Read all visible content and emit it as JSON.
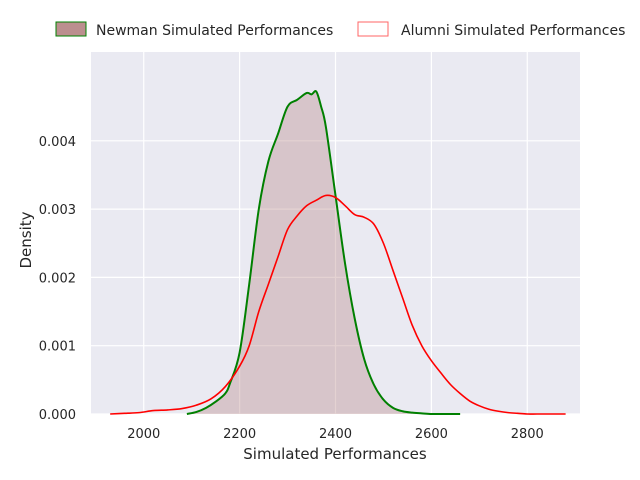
{
  "chart_data": {
    "type": "area",
    "xlabel": "Simulated Performances",
    "ylabel": "Density",
    "xlim": [
      1890,
      2910
    ],
    "ylim": [
      0,
      0.0053
    ],
    "xticks": [
      2000,
      2200,
      2400,
      2600,
      2800
    ],
    "xtick_labels": [
      "2000",
      "2200",
      "2400",
      "2600",
      "2800"
    ],
    "yticks": [
      0,
      0.001,
      0.002,
      0.003,
      0.004
    ],
    "ytick_labels": [
      "0.000",
      "0.001",
      "0.002",
      "0.003",
      "0.004"
    ],
    "grid": true,
    "legend_position": "top",
    "background": "#eaeaf2",
    "series": [
      {
        "name": "Newman Simulated Performances",
        "style": "filled",
        "line_color": "#008000",
        "fill_color": "#bc8f8f",
        "x": [
          2090,
          2110,
          2130,
          2150,
          2170,
          2180,
          2200,
          2220,
          2240,
          2260,
          2280,
          2300,
          2320,
          2340,
          2350,
          2360,
          2370,
          2380,
          2400,
          2420,
          2440,
          2460,
          2480,
          2500,
          2520,
          2540,
          2560,
          2580,
          2600,
          2620,
          2640,
          2660
        ],
        "y": [
          0.0,
          3e-05,
          9e-05,
          0.00018,
          0.0003,
          0.00045,
          0.0009,
          0.0019,
          0.003,
          0.0037,
          0.0041,
          0.0045,
          0.0046,
          0.0047,
          0.00468,
          0.00472,
          0.0045,
          0.0042,
          0.0032,
          0.0022,
          0.0014,
          0.0008,
          0.00043,
          0.00021,
          9e-05,
          4e-05,
          2e-05,
          1e-05,
          0.0,
          0.0,
          0.0,
          0.0
        ]
      },
      {
        "name": "Alumni Simulated Performances",
        "style": "line",
        "line_color": "#ff0000",
        "x": [
          1930,
          1960,
          1990,
          2020,
          2050,
          2080,
          2110,
          2140,
          2170,
          2200,
          2220,
          2240,
          2260,
          2280,
          2300,
          2320,
          2340,
          2360,
          2380,
          2400,
          2420,
          2440,
          2460,
          2480,
          2500,
          2520,
          2540,
          2560,
          2580,
          2600,
          2620,
          2640,
          2660,
          2680,
          2700,
          2720,
          2740,
          2760,
          2780,
          2800,
          2820,
          2850,
          2880
        ],
        "y": [
          0.0,
          1e-05,
          2e-05,
          5e-05,
          6e-05,
          8e-05,
          0.00013,
          0.00022,
          0.0004,
          0.0007,
          0.001,
          0.0015,
          0.0019,
          0.0023,
          0.0027,
          0.0029,
          0.00305,
          0.00313,
          0.0032,
          0.00317,
          0.00305,
          0.00292,
          0.00288,
          0.00278,
          0.0025,
          0.0021,
          0.0017,
          0.0013,
          0.001,
          0.00078,
          0.0006,
          0.00043,
          0.0003,
          0.00019,
          0.00012,
          7e-05,
          4e-05,
          2e-05,
          1e-05,
          0.0,
          0.0,
          0.0,
          0.0
        ]
      }
    ]
  }
}
